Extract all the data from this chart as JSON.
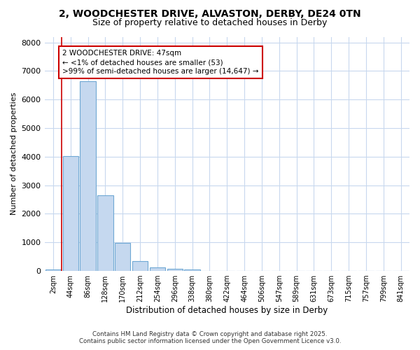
{
  "title_line1": "2, WOODCHESTER DRIVE, ALVASTON, DERBY, DE24 0TN",
  "title_line2": "Size of property relative to detached houses in Derby",
  "xlabel": "Distribution of detached houses by size in Derby",
  "ylabel": "Number of detached properties",
  "categories": [
    "2sqm",
    "44sqm",
    "86sqm",
    "128sqm",
    "170sqm",
    "212sqm",
    "254sqm",
    "296sqm",
    "338sqm",
    "380sqm",
    "422sqm",
    "464sqm",
    "506sqm",
    "547sqm",
    "589sqm",
    "631sqm",
    "673sqm",
    "715sqm",
    "757sqm",
    "799sqm",
    "841sqm"
  ],
  "values": [
    53,
    4020,
    6650,
    2650,
    990,
    340,
    120,
    70,
    50,
    0,
    0,
    0,
    0,
    0,
    0,
    0,
    0,
    0,
    0,
    0,
    0
  ],
  "bar_color": "#c5d8ef",
  "bar_edge_color": "#6fa8d4",
  "vline_color": "#cc0000",
  "annotation_text_line1": "2 WOODCHESTER DRIVE: 47sqm",
  "annotation_text_line2": "← <1% of detached houses are smaller (53)",
  "annotation_text_line3": ">99% of semi-detached houses are larger (14,647) →",
  "annotation_box_color": "#ffffff",
  "annotation_box_edge_color": "#cc0000",
  "ylim": [
    0,
    8200
  ],
  "yticks": [
    0,
    1000,
    2000,
    3000,
    4000,
    5000,
    6000,
    7000,
    8000
  ],
  "background_color": "#ffffff",
  "plot_bg_color": "#ffffff",
  "grid_color": "#c8d8ee",
  "footer_line1": "Contains HM Land Registry data © Crown copyright and database right 2025.",
  "footer_line2": "Contains public sector information licensed under the Open Government Licence v3.0.",
  "title1_fontsize": 10,
  "title2_fontsize": 9
}
